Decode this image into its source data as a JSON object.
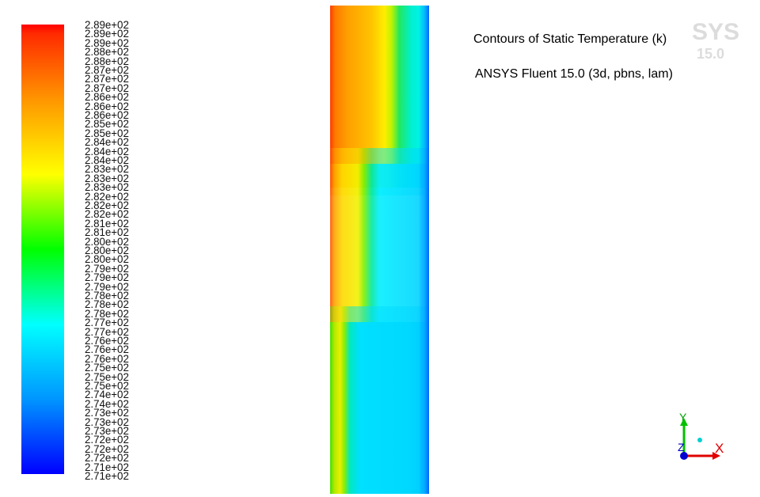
{
  "chart_data": {
    "type": "heatmap",
    "title": "Contours of Static Temperature (k)",
    "subtitle": "ANSYS Fluent 15.0 (3d, pbns, lam)",
    "colorbar": {
      "min": 271,
      "max": 289,
      "tick_labels": [
        "2.89e+02",
        "2.89e+02",
        "2.89e+02",
        "2.88e+02",
        "2.88e+02",
        "2.87e+02",
        "2.87e+02",
        "2.87e+02",
        "2.86e+02",
        "2.86e+02",
        "2.86e+02",
        "2.85e+02",
        "2.85e+02",
        "2.84e+02",
        "2.84e+02",
        "2.84e+02",
        "2.83e+02",
        "2.83e+02",
        "2.83e+02",
        "2.82e+02",
        "2.82e+02",
        "2.82e+02",
        "2.81e+02",
        "2.81e+02",
        "2.80e+02",
        "2.80e+02",
        "2.80e+02",
        "2.79e+02",
        "2.79e+02",
        "2.79e+02",
        "2.78e+02",
        "2.78e+02",
        "2.78e+02",
        "2.77e+02",
        "2.77e+02",
        "2.76e+02",
        "2.76e+02",
        "2.76e+02",
        "2.75e+02",
        "2.75e+02",
        "2.75e+02",
        "2.74e+02",
        "2.74e+02",
        "2.73e+02",
        "2.73e+02",
        "2.73e+02",
        "2.72e+02",
        "2.72e+02",
        "2.72e+02",
        "2.71e+02",
        "2.71e+02"
      ],
      "colors": [
        "#ff0000",
        "#ff8c00",
        "#ffff00",
        "#00ff00",
        "#00ffff",
        "#0080ff",
        "#0000ff"
      ]
    },
    "axes_triad": {
      "x": "X",
      "y": "Y",
      "z": "Z"
    }
  },
  "watermark": {
    "line1": "SYS",
    "line2": "15.0"
  }
}
